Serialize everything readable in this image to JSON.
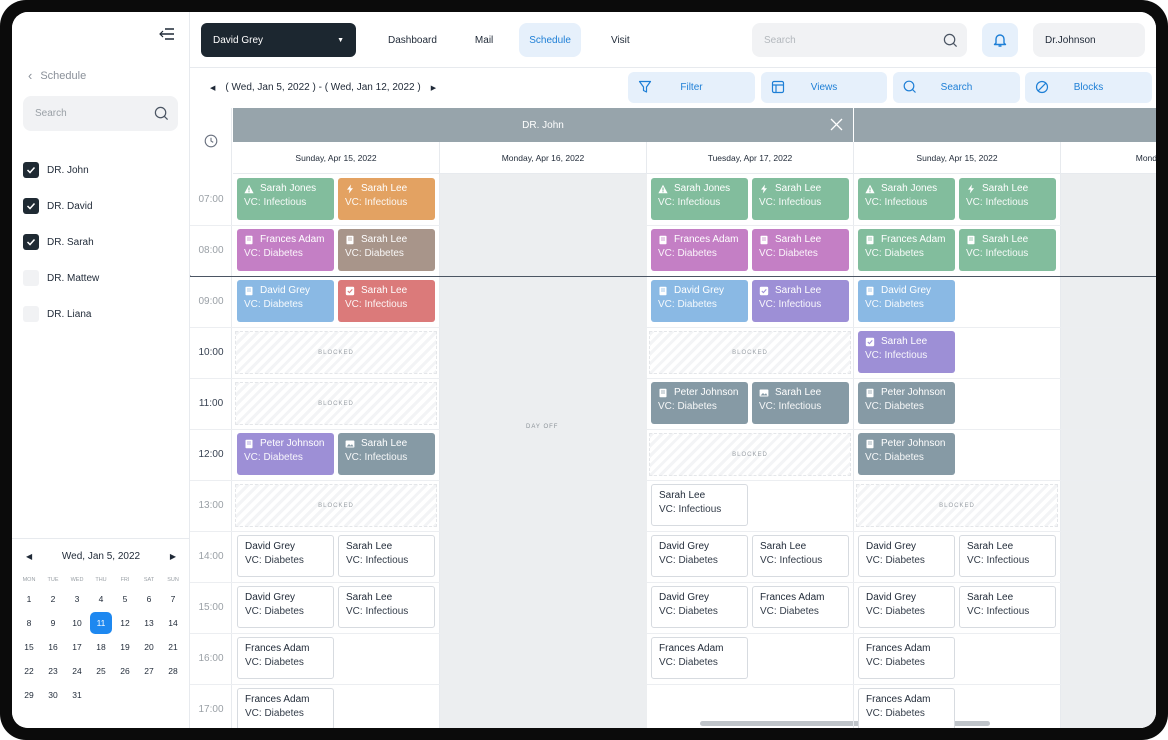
{
  "sidebar": {
    "back_label": "Schedule",
    "search_placeholder": "Search",
    "doctors": [
      {
        "label": "DR. John",
        "checked": true
      },
      {
        "label": "DR. David",
        "checked": true
      },
      {
        "label": "DR. Sarah",
        "checked": true
      },
      {
        "label": "DR. Mattew",
        "checked": false
      },
      {
        "label": "DR. Liana",
        "checked": false
      }
    ],
    "calendar": {
      "month_label": "Wed, Jan 5, 2022",
      "weekdays": [
        "MON",
        "TUE",
        "WED",
        "THU",
        "FRI",
        "SAT",
        "SUN"
      ],
      "days": [
        "1",
        "2",
        "3",
        "4",
        "5",
        "6",
        "7",
        "8",
        "9",
        "10",
        "11",
        "12",
        "13",
        "14",
        "15",
        "16",
        "17",
        "18",
        "19",
        "20",
        "21",
        "22",
        "23",
        "24",
        "25",
        "26",
        "27",
        "28",
        "29",
        "30",
        "31"
      ],
      "selected_day": "11"
    }
  },
  "topbar": {
    "patient_select": "David Grey",
    "nav": [
      "Dashboard",
      "Mail",
      "Schedule",
      "Visit"
    ],
    "active_nav": "Schedule",
    "search_placeholder": "Search",
    "user": "Dr.Johnson"
  },
  "toolbar": {
    "range": "( Wed, Jan 5, 2022 ) - ( Wed, Jan 12, 2022 )",
    "buttons": {
      "filter": "Filter",
      "views": "Views",
      "search": "Search",
      "blocks": "Blocks"
    }
  },
  "schedule": {
    "doctor_header": "DR. John",
    "day_headers": [
      "Sunday, Apr 15, 2022",
      "Monday, Apr 16, 2022",
      "Tuesday, Apr 17, 2022",
      "Sunday, Apr 15, 2022",
      "Mond"
    ],
    "times": [
      "07:00",
      "08:00",
      "09:00",
      "10:00",
      "11:00",
      "12:00",
      "13:00",
      "14:00",
      "15:00",
      "16:00",
      "17:00"
    ],
    "blocked_label": "BLOCKED",
    "day_off_label": "DAY OFF",
    "appointments": [
      {
        "day": 0,
        "slot": 0,
        "lane": 0,
        "name": "Sarah Jones",
        "vc": "VC: Infectious",
        "color": "#82bd9d",
        "icon": "warning"
      },
      {
        "day": 0,
        "slot": 0,
        "lane": 1,
        "name": "Sarah Lee",
        "vc": "VC: Infectious",
        "color": "#e3a262",
        "icon": "bolt"
      },
      {
        "day": 0,
        "slot": 1,
        "lane": 0,
        "name": "Frances Adam",
        "vc": "VC: Diabetes",
        "color": "#c47fc5",
        "icon": "doc"
      },
      {
        "day": 0,
        "slot": 1,
        "lane": 1,
        "name": "Sarah Lee",
        "vc": "VC: Diabetes",
        "color": "#a8958a",
        "icon": "doc"
      },
      {
        "day": 0,
        "slot": 2,
        "lane": 0,
        "name": "David Grey",
        "vc": "VC: Diabetes",
        "color": "#8ab9e4",
        "icon": "doc"
      },
      {
        "day": 0,
        "slot": 2,
        "lane": 1,
        "name": "Sarah Lee",
        "vc": "VC: Infectious",
        "color": "#db7a7a",
        "icon": "check"
      },
      {
        "day": 0,
        "slot": 5,
        "lane": 0,
        "name": "Peter Johnson",
        "vc": "VC: Diabetes",
        "color": "#9d8fd6",
        "icon": "doc"
      },
      {
        "day": 0,
        "slot": 5,
        "lane": 1,
        "name": "Sarah Lee",
        "vc": "VC: Infectious",
        "color": "#869aa5",
        "icon": "image"
      },
      {
        "day": 0,
        "slot": 7,
        "lane": 0,
        "name": "David Grey",
        "vc": "VC: Diabetes",
        "color": "white",
        "icon": ""
      },
      {
        "day": 0,
        "slot": 7,
        "lane": 1,
        "name": "Sarah Lee",
        "vc": "VC: Infectious",
        "color": "white",
        "icon": ""
      },
      {
        "day": 0,
        "slot": 8,
        "lane": 0,
        "name": "David Grey",
        "vc": "VC: Diabetes",
        "color": "white",
        "icon": ""
      },
      {
        "day": 0,
        "slot": 8,
        "lane": 1,
        "name": "Sarah Lee",
        "vc": "VC: Infectious",
        "color": "white",
        "icon": ""
      },
      {
        "day": 0,
        "slot": 9,
        "lane": 0,
        "name": "Frances Adam",
        "vc": "VC: Diabetes",
        "color": "white",
        "icon": ""
      },
      {
        "day": 0,
        "slot": 10,
        "lane": 0,
        "name": "Frances Adam",
        "vc": "VC: Diabetes",
        "color": "white",
        "icon": ""
      },
      {
        "day": 2,
        "slot": 0,
        "lane": 0,
        "name": "Sarah Jones",
        "vc": "VC: Infectious",
        "color": "#82bd9d",
        "icon": "warning"
      },
      {
        "day": 2,
        "slot": 0,
        "lane": 1,
        "name": "Sarah Lee",
        "vc": "VC: Infectious",
        "color": "#82bd9d",
        "icon": "bolt"
      },
      {
        "day": 2,
        "slot": 1,
        "lane": 0,
        "name": "Frances Adam",
        "vc": "VC: Diabetes",
        "color": "#c47fc5",
        "icon": "doc"
      },
      {
        "day": 2,
        "slot": 1,
        "lane": 1,
        "name": "Sarah Lee",
        "vc": "VC: Diabetes",
        "color": "#c47fc5",
        "icon": "doc"
      },
      {
        "day": 2,
        "slot": 2,
        "lane": 0,
        "name": "David Grey",
        "vc": "VC: Diabetes",
        "color": "#8ab9e4",
        "icon": "doc"
      },
      {
        "day": 2,
        "slot": 2,
        "lane": 1,
        "name": "Sarah Lee",
        "vc": "VC: Infectious",
        "color": "#9d8fd6",
        "icon": "check"
      },
      {
        "day": 2,
        "slot": 4,
        "lane": 0,
        "name": "Peter Johnson",
        "vc": "VC: Diabetes",
        "color": "#869aa5",
        "icon": "doc"
      },
      {
        "day": 2,
        "slot": 4,
        "lane": 1,
        "name": "Sarah Lee",
        "vc": "VC: Infectious",
        "color": "#869aa5",
        "icon": "image"
      },
      {
        "day": 2,
        "slot": 6,
        "lane": 0,
        "name": "Sarah Lee",
        "vc": "VC: Infectious",
        "color": "white",
        "icon": ""
      },
      {
        "day": 2,
        "slot": 7,
        "lane": 0,
        "name": "David Grey",
        "vc": "VC: Diabetes",
        "color": "white",
        "icon": ""
      },
      {
        "day": 2,
        "slot": 7,
        "lane": 1,
        "name": "Sarah Lee",
        "vc": "VC: Infectious",
        "color": "white",
        "icon": ""
      },
      {
        "day": 2,
        "slot": 8,
        "lane": 0,
        "name": "David Grey",
        "vc": "VC: Diabetes",
        "color": "white",
        "icon": ""
      },
      {
        "day": 2,
        "slot": 8,
        "lane": 1,
        "name": "Frances Adam",
        "vc": "VC: Diabetes",
        "color": "white",
        "icon": ""
      },
      {
        "day": 2,
        "slot": 9,
        "lane": 0,
        "name": "Frances Adam",
        "vc": "VC: Diabetes",
        "color": "white",
        "icon": ""
      },
      {
        "day": 3,
        "slot": 0,
        "lane": 0,
        "name": "Sarah Jones",
        "vc": "VC: Infectious",
        "color": "#82bd9d",
        "icon": "warning"
      },
      {
        "day": 3,
        "slot": 0,
        "lane": 1,
        "name": "Sarah Lee",
        "vc": "VC: Infectious",
        "color": "#82bd9d",
        "icon": "bolt"
      },
      {
        "day": 3,
        "slot": 1,
        "lane": 0,
        "name": "Frances Adam",
        "vc": "VC: Diabetes",
        "color": "#82bd9d",
        "icon": "doc"
      },
      {
        "day": 3,
        "slot": 1,
        "lane": 1,
        "name": "Sarah Lee",
        "vc": "VC: Infectious",
        "color": "#82bd9d",
        "icon": "doc"
      },
      {
        "day": 3,
        "slot": 2,
        "lane": 0,
        "name": "David Grey",
        "vc": "VC: Diabetes",
        "color": "#8ab9e4",
        "icon": "doc"
      },
      {
        "day": 3,
        "slot": 3,
        "lane": 0,
        "name": "Sarah Lee",
        "vc": "VC: Infectious",
        "color": "#9d8fd6",
        "icon": "check"
      },
      {
        "day": 3,
        "slot": 4,
        "lane": 0,
        "name": "Peter Johnson",
        "vc": "VC: Diabetes",
        "color": "#869aa5",
        "icon": "doc"
      },
      {
        "day": 3,
        "slot": 5,
        "lane": 0,
        "name": "Peter Johnson",
        "vc": "VC: Diabetes",
        "color": "#869aa5",
        "icon": "doc"
      },
      {
        "day": 3,
        "slot": 7,
        "lane": 0,
        "name": "David Grey",
        "vc": "VC: Diabetes",
        "color": "white",
        "icon": ""
      },
      {
        "day": 3,
        "slot": 7,
        "lane": 1,
        "name": "Sarah Lee",
        "vc": "VC: Infectious",
        "color": "white",
        "icon": ""
      },
      {
        "day": 3,
        "slot": 8,
        "lane": 0,
        "name": "David Grey",
        "vc": "VC: Diabetes",
        "color": "white",
        "icon": ""
      },
      {
        "day": 3,
        "slot": 8,
        "lane": 1,
        "name": "Sarah Lee",
        "vc": "VC: Infectious",
        "color": "white",
        "icon": ""
      },
      {
        "day": 3,
        "slot": 9,
        "lane": 0,
        "name": "Frances Adam",
        "vc": "VC: Diabetes",
        "color": "white",
        "icon": ""
      },
      {
        "day": 3,
        "slot": 10,
        "lane": 0,
        "name": "Frances Adam",
        "vc": "VC: Diabetes",
        "color": "white",
        "icon": ""
      }
    ],
    "blocked": [
      {
        "day": 0,
        "slot": 3
      },
      {
        "day": 0,
        "slot": 4
      },
      {
        "day": 0,
        "slot": 6
      },
      {
        "day": 2,
        "slot": 3
      },
      {
        "day": 2,
        "slot": 5
      },
      {
        "day": 3,
        "slot": 6
      }
    ]
  }
}
